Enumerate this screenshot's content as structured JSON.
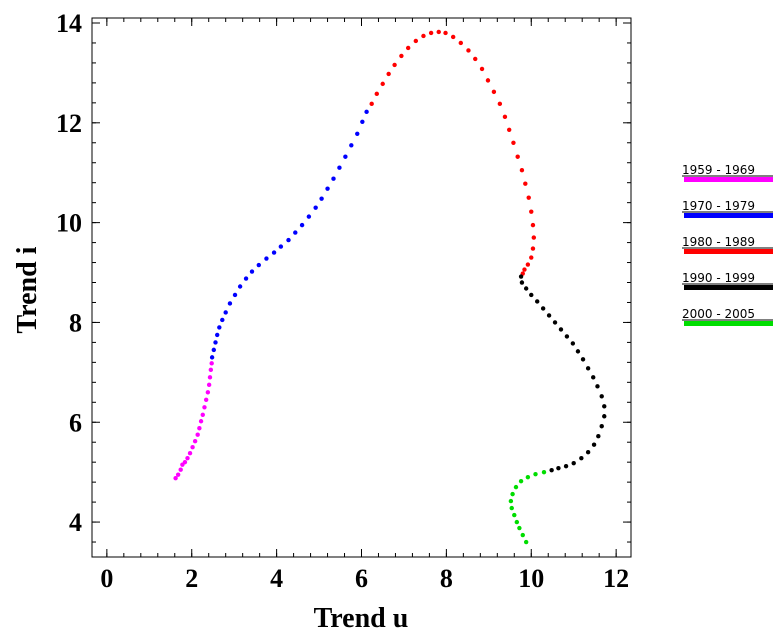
{
  "chart_data": {
    "type": "scatter",
    "title": "",
    "xlabel": "Trend u",
    "ylabel": "Trend i",
    "xlim": [
      -0.35,
      12.35
    ],
    "ylim": [
      3.3,
      14.1
    ],
    "x_ticks": [
      0,
      2,
      4,
      6,
      8,
      10,
      12
    ],
    "y_ticks": [
      4,
      6,
      8,
      10,
      12,
      14
    ],
    "x_minor_step": 0.4,
    "y_minor_step": 0.4,
    "grid": false,
    "legend_position": "right",
    "series": [
      {
        "name": "1959 - 1969",
        "color": "#ff00ff",
        "points": [
          [
            1.62,
            4.88
          ],
          [
            1.68,
            4.95
          ],
          [
            1.74,
            5.05
          ],
          [
            1.78,
            5.15
          ],
          [
            1.84,
            5.2
          ],
          [
            1.9,
            5.28
          ],
          [
            1.96,
            5.38
          ],
          [
            2.02,
            5.5
          ],
          [
            2.08,
            5.62
          ],
          [
            2.14,
            5.75
          ],
          [
            2.18,
            5.88
          ],
          [
            2.22,
            6.02
          ],
          [
            2.26,
            6.15
          ],
          [
            2.3,
            6.3
          ],
          [
            2.34,
            6.45
          ],
          [
            2.38,
            6.6
          ],
          [
            2.41,
            6.75
          ],
          [
            2.43,
            6.9
          ],
          [
            2.45,
            7.05
          ],
          [
            2.47,
            7.18
          ]
        ]
      },
      {
        "name": "1970 - 1979",
        "color": "#0000ff",
        "points": [
          [
            2.48,
            7.3
          ],
          [
            2.52,
            7.45
          ],
          [
            2.56,
            7.6
          ],
          [
            2.6,
            7.75
          ],
          [
            2.65,
            7.9
          ],
          [
            2.72,
            8.05
          ],
          [
            2.8,
            8.2
          ],
          [
            2.9,
            8.38
          ],
          [
            3.02,
            8.55
          ],
          [
            3.14,
            8.72
          ],
          [
            3.28,
            8.88
          ],
          [
            3.42,
            9.02
          ],
          [
            3.58,
            9.15
          ],
          [
            3.76,
            9.28
          ],
          [
            3.94,
            9.4
          ],
          [
            4.1,
            9.52
          ],
          [
            4.28,
            9.65
          ],
          [
            4.44,
            9.8
          ],
          [
            4.6,
            9.95
          ],
          [
            4.76,
            10.12
          ],
          [
            4.92,
            10.3
          ],
          [
            5.06,
            10.48
          ],
          [
            5.2,
            10.68
          ],
          [
            5.34,
            10.88
          ],
          [
            5.48,
            11.1
          ],
          [
            5.62,
            11.32
          ],
          [
            5.76,
            11.55
          ],
          [
            5.9,
            11.78
          ],
          [
            6.02,
            12.02
          ],
          [
            6.12,
            12.22
          ]
        ]
      },
      {
        "name": "1980 - 1989",
        "color": "#ff0000",
        "points": [
          [
            6.24,
            12.38
          ],
          [
            6.36,
            12.58
          ],
          [
            6.5,
            12.78
          ],
          [
            6.64,
            12.98
          ],
          [
            6.78,
            13.16
          ],
          [
            6.94,
            13.34
          ],
          [
            7.1,
            13.5
          ],
          [
            7.28,
            13.64
          ],
          [
            7.46,
            13.74
          ],
          [
            7.64,
            13.8
          ],
          [
            7.82,
            13.82
          ],
          [
            7.98,
            13.8
          ],
          [
            8.16,
            13.72
          ],
          [
            8.34,
            13.6
          ],
          [
            8.52,
            13.45
          ],
          [
            8.68,
            13.28
          ],
          [
            8.84,
            13.08
          ],
          [
            8.98,
            12.85
          ],
          [
            9.12,
            12.62
          ],
          [
            9.26,
            12.38
          ],
          [
            9.38,
            12.12
          ],
          [
            9.48,
            11.86
          ],
          [
            9.58,
            11.6
          ],
          [
            9.68,
            11.32
          ],
          [
            9.78,
            11.05
          ],
          [
            9.86,
            10.78
          ],
          [
            9.94,
            10.5
          ],
          [
            10.0,
            10.22
          ],
          [
            10.04,
            9.95
          ],
          [
            10.06,
            9.7
          ],
          [
            10.04,
            9.48
          ],
          [
            10.0,
            9.3
          ],
          [
            9.92,
            9.16
          ],
          [
            9.84,
            9.06
          ],
          [
            9.8,
            8.98
          ]
        ]
      },
      {
        "name": "1990 - 1999",
        "color": "#000000",
        "points": [
          [
            9.76,
            8.92
          ],
          [
            9.78,
            8.8
          ],
          [
            9.88,
            8.68
          ],
          [
            10.0,
            8.55
          ],
          [
            10.14,
            8.42
          ],
          [
            10.28,
            8.28
          ],
          [
            10.42,
            8.14
          ],
          [
            10.56,
            8.0
          ],
          [
            10.7,
            7.86
          ],
          [
            10.84,
            7.72
          ],
          [
            10.98,
            7.58
          ],
          [
            11.1,
            7.42
          ],
          [
            11.22,
            7.26
          ],
          [
            11.34,
            7.08
          ],
          [
            11.46,
            6.9
          ],
          [
            11.56,
            6.72
          ],
          [
            11.66,
            6.52
          ],
          [
            11.72,
            6.32
          ],
          [
            11.72,
            6.12
          ],
          [
            11.66,
            5.92
          ],
          [
            11.58,
            5.72
          ],
          [
            11.48,
            5.55
          ],
          [
            11.34,
            5.4
          ],
          [
            11.18,
            5.28
          ],
          [
            11.0,
            5.18
          ],
          [
            10.82,
            5.12
          ],
          [
            10.64,
            5.08
          ],
          [
            10.48,
            5.04
          ]
        ]
      },
      {
        "name": "2000 - 2005",
        "color": "#00dd00",
        "points": [
          [
            10.3,
            5.0
          ],
          [
            10.1,
            4.96
          ],
          [
            9.92,
            4.9
          ],
          [
            9.76,
            4.82
          ],
          [
            9.64,
            4.7
          ],
          [
            9.56,
            4.56
          ],
          [
            9.52,
            4.42
          ],
          [
            9.54,
            4.28
          ],
          [
            9.6,
            4.14
          ],
          [
            9.66,
            4.0
          ],
          [
            9.72,
            3.88
          ],
          [
            9.8,
            3.74
          ],
          [
            9.88,
            3.6
          ]
        ]
      }
    ]
  }
}
